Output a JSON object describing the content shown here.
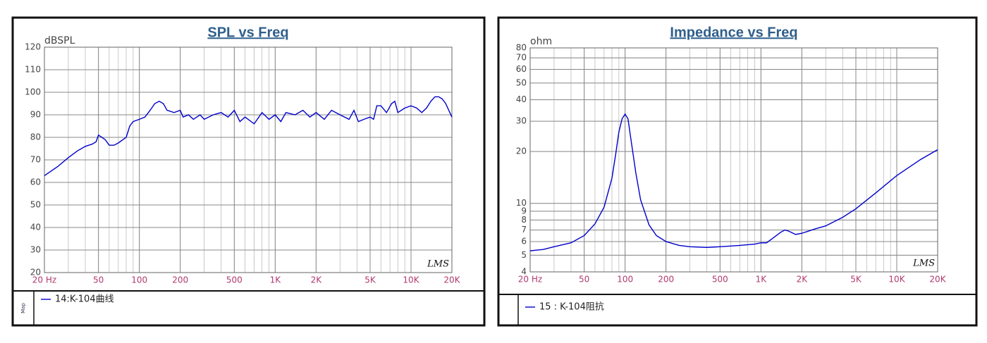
{
  "chart_data": [
    {
      "type": "line",
      "title": "SPL vs Freq",
      "y_label": "dBSPL",
      "xscale": "log",
      "yscale": "linear",
      "grid": true,
      "minor_grid": true,
      "watermark": "LMS",
      "legend_side_label": "Map",
      "xlim": [
        20,
        20000
      ],
      "ylim": [
        20,
        120
      ],
      "xticks": [
        {
          "value": 20,
          "label": "20 Hz"
        },
        50,
        100,
        200,
        500,
        {
          "value": 1000,
          "label": "1K"
        },
        {
          "value": 2000,
          "label": "2K"
        },
        {
          "value": 5000,
          "label": "5K"
        },
        {
          "value": 10000,
          "label": "10K"
        },
        {
          "value": 20000,
          "label": "20K"
        }
      ],
      "yticks": [
        20,
        30,
        40,
        50,
        60,
        70,
        80,
        90,
        100,
        110,
        120
      ],
      "x": [
        20,
        25,
        30,
        35,
        40,
        45,
        48,
        50,
        53,
        56,
        60,
        65,
        70,
        80,
        85,
        90,
        100,
        110,
        120,
        130,
        140,
        150,
        160,
        180,
        200,
        210,
        230,
        250,
        280,
        300,
        350,
        400,
        450,
        500,
        550,
        600,
        700,
        800,
        900,
        1000,
        1100,
        1200,
        1400,
        1600,
        1800,
        2000,
        2300,
        2600,
        3000,
        3500,
        3800,
        4100,
        4500,
        5000,
        5300,
        5600,
        6000,
        6600,
        7200,
        7600,
        8000,
        9000,
        10000,
        11000,
        12000,
        13000,
        14000,
        15000,
        16000,
        17000,
        18000,
        20000
      ],
      "series": [
        {
          "name": "14:K-104曲线",
          "color": "#0000cc",
          "values": [
            63,
            67,
            71,
            74,
            76,
            77,
            78,
            81,
            80,
            79,
            76.5,
            76.5,
            77.5,
            80,
            85,
            87,
            88,
            89,
            92,
            95,
            96,
            95,
            92,
            91,
            92,
            89,
            90,
            88,
            90,
            88,
            90,
            91,
            89,
            92,
            87,
            89,
            86,
            91,
            88,
            90,
            87,
            91,
            90,
            92,
            89,
            91,
            88,
            92,
            90,
            88,
            92,
            87,
            88,
            89,
            88,
            94,
            94,
            91,
            95,
            96,
            91,
            93,
            94,
            93,
            91,
            93,
            96,
            98,
            98,
            97,
            95,
            89
          ]
        }
      ]
    },
    {
      "type": "line",
      "title": "Impedance vs Freq",
      "y_label": "ohm",
      "xscale": "log",
      "yscale": "log",
      "grid": true,
      "minor_grid": true,
      "watermark": "LMS",
      "xlim": [
        20,
        20000
      ],
      "ylim": [
        4,
        80
      ],
      "xticks": [
        {
          "value": 20,
          "label": "20 Hz"
        },
        50,
        100,
        200,
        500,
        {
          "value": 1000,
          "label": "1K"
        },
        {
          "value": 2000,
          "label": "2K"
        },
        {
          "value": 5000,
          "label": "5K"
        },
        {
          "value": 10000,
          "label": "10K"
        },
        {
          "value": 20000,
          "label": "20K"
        }
      ],
      "yticks": [
        4,
        5,
        6,
        7,
        8,
        9,
        10,
        20,
        30,
        40,
        50,
        60,
        70,
        80
      ],
      "x": [
        20,
        25,
        30,
        40,
        50,
        60,
        70,
        80,
        85,
        90,
        95,
        100,
        105,
        110,
        120,
        130,
        150,
        170,
        200,
        250,
        300,
        400,
        500,
        700,
        900,
        1000,
        1100,
        1200,
        1400,
        1500,
        1600,
        1800,
        2000,
        2500,
        3000,
        4000,
        5000,
        7000,
        10000,
        15000,
        20000
      ],
      "series": [
        {
          "name": "15 : K-104阻抗",
          "color": "#0000cc",
          "values": [
            5.3,
            5.4,
            5.6,
            5.9,
            6.5,
            7.6,
            9.5,
            14,
            19,
            26,
            31,
            33,
            31,
            24,
            15,
            10.5,
            7.5,
            6.5,
            6,
            5.7,
            5.6,
            5.55,
            5.6,
            5.7,
            5.8,
            5.9,
            5.9,
            6.2,
            6.8,
            7.0,
            6.9,
            6.6,
            6.7,
            7.1,
            7.4,
            8.3,
            9.3,
            11.5,
            14.5,
            18,
            20.5
          ]
        }
      ]
    }
  ]
}
